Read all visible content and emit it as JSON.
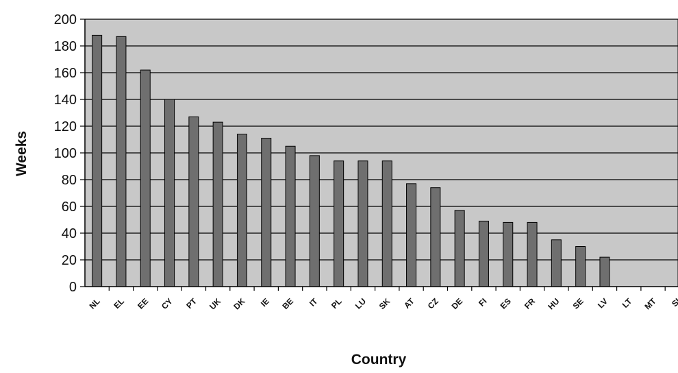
{
  "chart_data": {
    "type": "bar",
    "title": "",
    "xlabel": "Country",
    "ylabel": "Weeks",
    "categories": [
      "NL",
      "EL",
      "EE",
      "CY",
      "PT",
      "UK",
      "DK",
      "IE",
      "BE",
      "IT",
      "PL",
      "LU",
      "SK",
      "AT",
      "CZ",
      "DE",
      "FI",
      "ES",
      "FR",
      "HU",
      "SE",
      "LV",
      "LT",
      "MT",
      "SI"
    ],
    "values": [
      188,
      187,
      162,
      140,
      127,
      123,
      114,
      111,
      105,
      98,
      94,
      94,
      94,
      77,
      74,
      57,
      49,
      48,
      48,
      35,
      30,
      22,
      0,
      0,
      0
    ],
    "ylim": [
      0,
      200
    ],
    "yticks": [
      0,
      20,
      40,
      60,
      80,
      100,
      120,
      140,
      160,
      180,
      200
    ],
    "grid": true,
    "colors": {
      "plot_background": "#c8c8c8",
      "bar_fill": "#6f6f6f",
      "bar_stroke": "#000000",
      "gridline": "#000000"
    }
  }
}
